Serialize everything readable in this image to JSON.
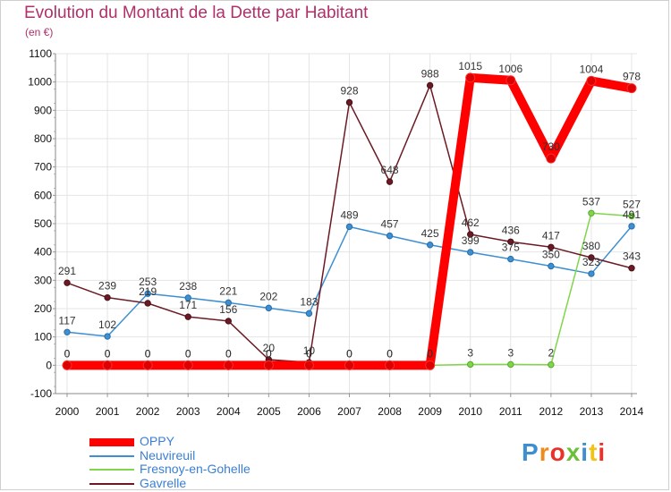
{
  "title": "Evolution du Montant de la Dette par Habitant",
  "unit_label": "(en €)",
  "brand": "Proxiti",
  "chart_data": {
    "type": "line",
    "title": "Evolution du Montant de la Dette par Habitant",
    "ylabel": "(en €)",
    "xlabel": "",
    "ylim": [
      -100,
      1100
    ],
    "yticks": [
      -100,
      0,
      100,
      200,
      300,
      400,
      500,
      600,
      700,
      800,
      900,
      1000,
      1100
    ],
    "categories": [
      "2000",
      "2001",
      "2002",
      "2003",
      "2004",
      "2005",
      "2006",
      "2007",
      "2008",
      "2009",
      "2010",
      "2011",
      "2012",
      "2013",
      "2014"
    ],
    "grid": true,
    "legend_position": "bottom-left",
    "series": [
      {
        "name": "OPPY",
        "color": "#ff0000",
        "values": [
          0,
          0,
          0,
          0,
          0,
          0,
          0,
          0,
          0,
          0,
          1015,
          1006,
          730,
          1004,
          978
        ],
        "labels": [
          "0",
          "0",
          "0",
          "0",
          "0",
          "0",
          "0",
          "0",
          "0",
          "0",
          "1015",
          "1006",
          "730",
          "1004",
          "978"
        ]
      },
      {
        "name": "Neuvireuil",
        "color": "#3d8fd1",
        "values": [
          117,
          102,
          253,
          238,
          221,
          202,
          183,
          489,
          457,
          425,
          399,
          375,
          350,
          323,
          491
        ],
        "labels": [
          "117",
          "102",
          "253",
          "238",
          "221",
          "202",
          "183",
          "489",
          "457",
          "425",
          "399",
          "375",
          "350",
          "323",
          "491"
        ]
      },
      {
        "name": "Fresnoy-en-Gohelle",
        "color": "#7fd64a",
        "values": [
          0,
          0,
          0,
          0,
          0,
          0,
          0,
          0,
          0,
          0,
          3,
          3,
          2,
          537,
          527
        ],
        "labels": [
          "0",
          "0",
          "0",
          "0",
          "0",
          "0",
          "0",
          "0",
          "0",
          "0",
          "3",
          "3",
          "2",
          "537",
          "527"
        ]
      },
      {
        "name": "Gavrelle",
        "color": "#6b1a24",
        "values": [
          291,
          239,
          219,
          171,
          156,
          20,
          10,
          928,
          648,
          988,
          462,
          436,
          417,
          380,
          343
        ],
        "labels": [
          "291",
          "239",
          "219",
          "171",
          "156",
          "20",
          "10",
          "928",
          "648",
          "988",
          "462",
          "436",
          "417",
          "380",
          "343"
        ]
      }
    ]
  }
}
